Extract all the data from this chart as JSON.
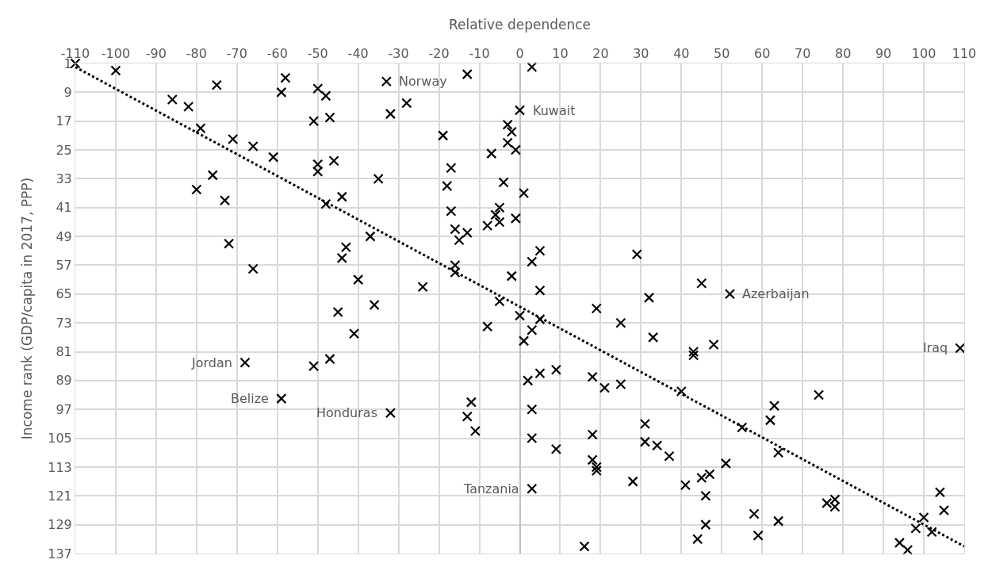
{
  "chart_data": {
    "type": "scatter",
    "xlabel": "Relative dependence",
    "ylabel": "Income rank (GDP/capita in 2017, PPP)",
    "xlim": [
      -110,
      110
    ],
    "xticks": [
      -110,
      -100,
      -90,
      -80,
      -70,
      -60,
      -50,
      -40,
      -30,
      -20,
      -10,
      0,
      10,
      20,
      30,
      40,
      50,
      60,
      70,
      80,
      90,
      100,
      110
    ],
    "ylim": [
      137,
      1
    ],
    "yticks": [
      1,
      9,
      17,
      25,
      33,
      41,
      49,
      57,
      65,
      73,
      81,
      89,
      97,
      105,
      113,
      121,
      129,
      137
    ],
    "grid": true,
    "series": [
      {
        "marker": "cross",
        "color": "#000000",
        "x": [
          -110,
          -100,
          -86,
          -82,
          -75,
          -58,
          -59,
          -50,
          -48,
          -79,
          -71,
          -66,
          -61,
          -51,
          -47,
          -50,
          -50,
          -46,
          -76,
          -80,
          -73,
          -48,
          -44,
          -72,
          -66,
          -40,
          -43,
          -44,
          -45,
          -41,
          -68,
          -51,
          -47,
          -59,
          -33,
          -13,
          3,
          -28,
          -32,
          0,
          -19,
          -3,
          -2,
          -3,
          -1,
          -7,
          -17,
          -18,
          -4,
          1,
          -35,
          -17,
          -5,
          -6,
          -5,
          -8,
          -1,
          -16,
          -13,
          -15,
          -37,
          5,
          3,
          -16,
          -16,
          -2,
          29,
          -24,
          5,
          32,
          -36,
          -5,
          19,
          0,
          5,
          3,
          1,
          -8,
          25,
          33,
          5,
          2,
          9,
          18,
          21,
          25,
          -12,
          -13,
          -11,
          -32,
          3,
          3,
          9,
          18,
          18,
          19,
          19,
          28,
          31,
          31,
          34,
          3,
          16,
          45,
          52,
          43,
          43,
          48,
          109,
          40,
          74,
          63,
          62,
          55,
          64,
          51,
          47,
          45,
          37,
          41,
          46,
          76,
          78,
          78,
          104,
          105,
          58,
          46,
          44,
          59,
          64,
          100,
          98,
          102,
          94,
          96
        ],
        "values": [
          1,
          3,
          11,
          13,
          7,
          5,
          9,
          8,
          10,
          19,
          22,
          24,
          27,
          17,
          16,
          29,
          31,
          28,
          32,
          36,
          39,
          40,
          38,
          51,
          58,
          61,
          52,
          55,
          70,
          76,
          84,
          85,
          83,
          94,
          6,
          4,
          2,
          12,
          15,
          14,
          21,
          18,
          20,
          23,
          25,
          26,
          30,
          35,
          34,
          37,
          33,
          42,
          41,
          43,
          45,
          46,
          44,
          47,
          48,
          50,
          49,
          53,
          56,
          57,
          59,
          60,
          54,
          63,
          64,
          66,
          68,
          67,
          69,
          71,
          72,
          75,
          78,
          74,
          73,
          77,
          87,
          89,
          86,
          88,
          91,
          90,
          95,
          99,
          103,
          98,
          97,
          105,
          108,
          104,
          111,
          113,
          114,
          117,
          101,
          106,
          107,
          119,
          135,
          62,
          65,
          81,
          82,
          79,
          80,
          92,
          93,
          96,
          100,
          102,
          109,
          112,
          115,
          116,
          110,
          118,
          121,
          123,
          122,
          124,
          120,
          125,
          126,
          129,
          133,
          132,
          128,
          127,
          130,
          131,
          134,
          136
        ]
      },
      {
        "type": "line",
        "line_style": "dotted",
        "color": "#000000",
        "x": [
          -110,
          110
        ],
        "values": [
          2,
          135
        ]
      }
    ],
    "annotations": [
      {
        "text": "Norway",
        "x": -33,
        "y": 6
      },
      {
        "text": "Kuwait",
        "x": 0,
        "y": 14
      },
      {
        "text": "Azerbaijan",
        "x": 52,
        "y": 65
      },
      {
        "text": "Jordan",
        "x": -68,
        "y": 84
      },
      {
        "text": "Belize",
        "x": -59,
        "y": 94
      },
      {
        "text": "Honduras",
        "x": -32,
        "y": 98
      },
      {
        "text": "Tanzania",
        "x": 3,
        "y": 119
      },
      {
        "text": "Iraq",
        "x": 109,
        "y": 80
      }
    ]
  }
}
